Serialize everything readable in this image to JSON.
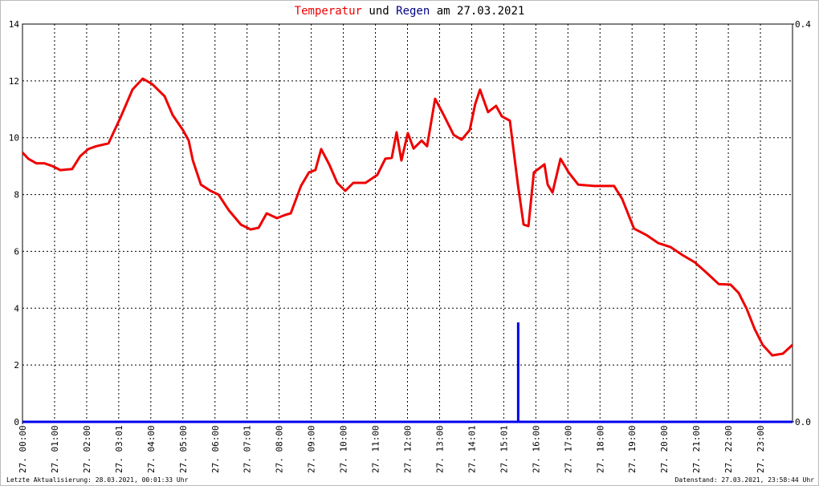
{
  "chart_data": {
    "type": "line",
    "title_parts": [
      {
        "text": "Temperatur",
        "color": "#ee0000"
      },
      {
        "text": "und",
        "color": "#000000"
      },
      {
        "text": "Regen",
        "color": "#000088"
      },
      {
        "text": "am 27.03.2021",
        "color": "#000000"
      }
    ],
    "footer_left": "Letzte Aktualisierung: 28.03.2021, 00:01:33 Uhr",
    "footer_right": "Datenstand: 27.03.2021, 23:58:44 Uhr",
    "xlim": [
      0,
      24
    ],
    "xticks": [
      {
        "value": 0,
        "label": "27. 00:00"
      },
      {
        "value": 1,
        "label": "27. 01:00"
      },
      {
        "value": 2,
        "label": "27. 02:00"
      },
      {
        "value": 3,
        "label": "27. 03:01"
      },
      {
        "value": 4,
        "label": "27. 04:00"
      },
      {
        "value": 5,
        "label": "27. 05:00"
      },
      {
        "value": 6,
        "label": "27. 06:00"
      },
      {
        "value": 7,
        "label": "27. 07:01"
      },
      {
        "value": 8,
        "label": "27. 08:00"
      },
      {
        "value": 9,
        "label": "27. 09:00"
      },
      {
        "value": 10,
        "label": "27. 10:00"
      },
      {
        "value": 11,
        "label": "27. 11:00"
      },
      {
        "value": 12,
        "label": "27. 12:00"
      },
      {
        "value": 13,
        "label": "27. 13:00"
      },
      {
        "value": 14,
        "label": "27. 14:01"
      },
      {
        "value": 15,
        "label": "27. 15:01"
      },
      {
        "value": 16,
        "label": "27. 16:00"
      },
      {
        "value": 17,
        "label": "27. 17:00"
      },
      {
        "value": 18,
        "label": "27. 18:00"
      },
      {
        "value": 19,
        "label": "27. 19:00"
      },
      {
        "value": 20,
        "label": "27. 20:00"
      },
      {
        "value": 21,
        "label": "27. 21:00"
      },
      {
        "value": 22,
        "label": "27. 22:00"
      },
      {
        "value": 23,
        "label": "27. 23:00"
      }
    ],
    "ylim": [
      0,
      14
    ],
    "yticks": [
      0,
      2,
      4,
      6,
      8,
      10,
      12,
      14
    ],
    "y2lim": [
      0,
      0.4
    ],
    "y2ticks": [
      {
        "value": 0,
        "label": "0.0"
      },
      {
        "value": 0.4,
        "label": "0.4"
      }
    ],
    "grid": true,
    "series": [
      {
        "name": "Temperatur",
        "color": "#ee0000",
        "type": "line",
        "x": [
          0,
          0.18,
          0.43,
          0.68,
          0.93,
          1.18,
          1.55,
          1.8,
          2.05,
          2.3,
          2.68,
          3.05,
          3.43,
          3.75,
          4.05,
          4.43,
          4.68,
          5.0,
          5.18,
          5.31,
          5.56,
          5.86,
          6.11,
          6.43,
          6.81,
          7.11,
          7.36,
          7.61,
          7.93,
          8.18,
          8.36,
          8.68,
          8.93,
          9.13,
          9.31,
          9.56,
          9.81,
          10.06,
          10.31,
          10.69,
          11.06,
          11.31,
          11.51,
          11.66,
          11.81,
          12.01,
          12.19,
          12.44,
          12.61,
          12.86,
          13.11,
          13.44,
          13.69,
          13.94,
          14.11,
          14.26,
          14.51,
          14.76,
          14.94,
          15.19,
          15.44,
          15.62,
          15.77,
          15.94,
          16.27,
          16.37,
          16.52,
          16.77,
          17.02,
          17.32,
          17.82,
          18.44,
          18.69,
          19.06,
          19.44,
          19.82,
          20.2,
          20.57,
          20.95,
          21.32,
          21.7,
          22.07,
          22.32,
          22.57,
          22.82,
          23.07,
          23.37,
          23.7,
          24.0
        ],
        "values": [
          9.48,
          9.26,
          9.1,
          9.1,
          9.0,
          8.86,
          8.9,
          9.35,
          9.6,
          9.7,
          9.8,
          10.7,
          11.7,
          12.08,
          11.88,
          11.46,
          10.8,
          10.27,
          9.9,
          9.2,
          8.35,
          8.13,
          8.0,
          7.45,
          6.94,
          6.77,
          6.83,
          7.34,
          7.17,
          7.28,
          7.34,
          8.3,
          8.78,
          8.86,
          9.6,
          9.06,
          8.41,
          8.13,
          8.41,
          8.41,
          8.69,
          9.26,
          9.29,
          10.19,
          9.2,
          10.16,
          9.62,
          9.9,
          9.7,
          11.37,
          10.84,
          10.1,
          9.93,
          10.27,
          11.18,
          11.69,
          10.9,
          11.12,
          10.75,
          10.6,
          8.35,
          6.94,
          6.89,
          8.78,
          9.06,
          8.35,
          8.07,
          9.26,
          8.78,
          8.35,
          8.3,
          8.3,
          7.85,
          6.8,
          6.58,
          6.29,
          6.15,
          5.87,
          5.62,
          5.25,
          4.85,
          4.83,
          4.54,
          3.98,
          3.27,
          2.71,
          2.34,
          2.4,
          2.71
        ]
      },
      {
        "name": "Regen",
        "color": "#0000ee",
        "type": "bar",
        "axis": "y2",
        "x": [
          15.45
        ],
        "values": [
          0.1
        ]
      }
    ]
  }
}
